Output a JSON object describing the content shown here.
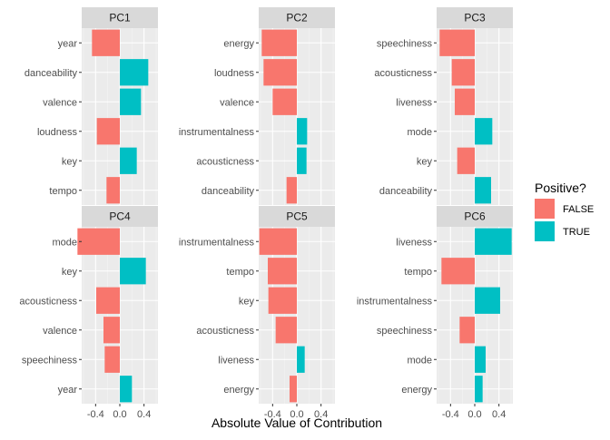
{
  "chart_data": {
    "type": "bar",
    "orientation": "horizontal",
    "layout": "facet-grid 2x3",
    "xlabel": "Absolute Value of Contribution",
    "ylabel": "",
    "xlim": [
      -0.63,
      0.63
    ],
    "x_ticks": [
      -0.4,
      0.0,
      0.4
    ],
    "x_tick_labels": [
      "-0.4",
      "0.0",
      "0.4"
    ],
    "grid": true,
    "legend": {
      "title": "Positive?",
      "placement": "right",
      "entries": [
        {
          "label": "FALSE",
          "color": "#F8766D"
        },
        {
          "label": "TRUE",
          "color": "#00BFC4"
        }
      ]
    },
    "panels": [
      {
        "title": "PC1",
        "categories": [
          "year",
          "danceability",
          "valence",
          "loudness",
          "key",
          "tempo"
        ],
        "values": [
          -0.46,
          0.47,
          0.35,
          -0.38,
          0.28,
          -0.22
        ]
      },
      {
        "title": "PC2",
        "categories": [
          "energy",
          "loudness",
          "valence",
          "instrumentalness",
          "acousticness",
          "danceability"
        ],
        "values": [
          -0.58,
          -0.55,
          -0.4,
          0.17,
          0.16,
          -0.17
        ]
      },
      {
        "title": "PC3",
        "categories": [
          "speechiness",
          "acousticness",
          "liveness",
          "mode",
          "key",
          "danceability"
        ],
        "values": [
          -0.58,
          -0.38,
          -0.33,
          0.29,
          -0.29,
          0.27
        ]
      },
      {
        "title": "PC4",
        "categories": [
          "mode",
          "key",
          "acousticness",
          "valence",
          "speechiness",
          "year"
        ],
        "values": [
          -0.7,
          0.43,
          -0.39,
          -0.27,
          -0.25,
          0.2
        ]
      },
      {
        "title": "PC5",
        "categories": [
          "instrumentalness",
          "tempo",
          "key",
          "acousticness",
          "liveness",
          "energy"
        ],
        "values": [
          -0.62,
          -0.48,
          -0.47,
          -0.35,
          0.13,
          -0.12
        ]
      },
      {
        "title": "PC6",
        "categories": [
          "liveness",
          "tempo",
          "instrumentalness",
          "speechiness",
          "mode",
          "energy"
        ],
        "values": [
          0.61,
          -0.55,
          0.42,
          -0.25,
          0.18,
          0.13
        ]
      }
    ]
  }
}
